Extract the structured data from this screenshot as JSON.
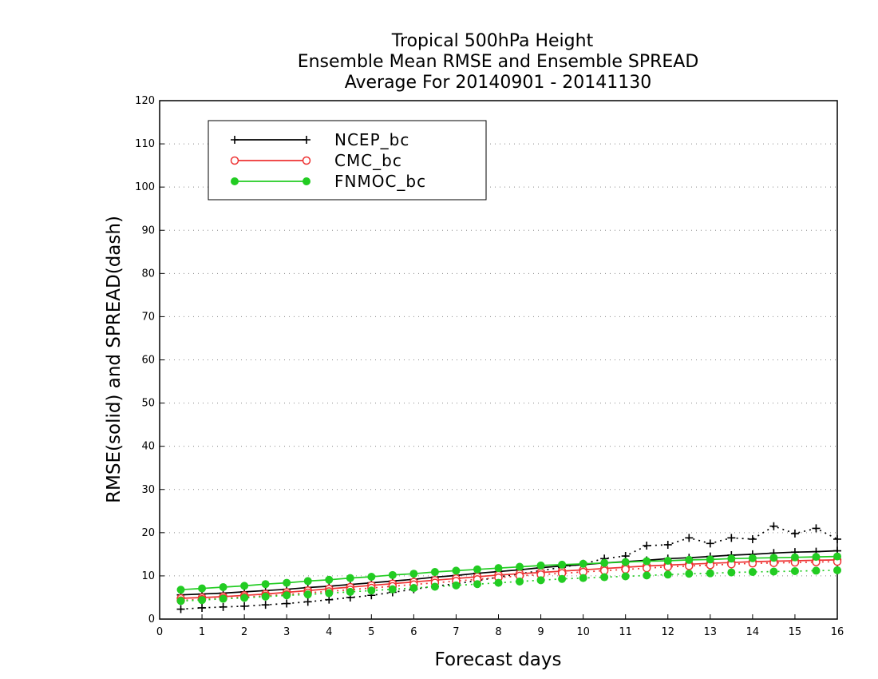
{
  "chart_data": {
    "type": "line",
    "title_lines": [
      "Tropical 500hPa Height",
      "Ensemble Mean RMSE and Ensemble SPREAD",
      "Average For 20140901 - 20141130"
    ],
    "xlabel": "Forecast days",
    "ylabel": "RMSE(solid) and SPREAD(dash)",
    "xlim": [
      0,
      16
    ],
    "ylim": [
      0,
      120
    ],
    "xticks": [
      "0",
      "1",
      "2",
      "3",
      "4",
      "5",
      "6",
      "7",
      "8",
      "9",
      "10",
      "11",
      "12",
      "13",
      "14",
      "15",
      "16"
    ],
    "yticks": [
      "0",
      "10",
      "20",
      "30",
      "40",
      "50",
      "60",
      "70",
      "80",
      "90",
      "100",
      "110",
      "120"
    ],
    "grid": "horizontal dotted",
    "legend_position": "top-left",
    "x": [
      0.5,
      1,
      1.5,
      2,
      2.5,
      3,
      3.5,
      4,
      4.5,
      5,
      5.5,
      6,
      6.5,
      7,
      7.5,
      8,
      8.5,
      9,
      9.5,
      10,
      10.5,
      11,
      11.5,
      12,
      12.5,
      13,
      13.5,
      14,
      14.5,
      15,
      15.5,
      16
    ],
    "series": [
      {
        "name": "NCEP_bc",
        "color": "#000000",
        "marker": "plus",
        "rmse": [
          5.6,
          5.8,
          6.0,
          6.3,
          6.6,
          6.9,
          7.3,
          7.6,
          8.0,
          8.4,
          8.8,
          9.2,
          9.7,
          10.1,
          10.6,
          11.0,
          11.4,
          11.9,
          12.3,
          12.6,
          13.0,
          13.3,
          13.6,
          14.0,
          14.2,
          14.5,
          14.8,
          15.0,
          15.3,
          15.5,
          15.6,
          15.8
        ],
        "spread": [
          2.3,
          2.6,
          2.8,
          3.0,
          3.3,
          3.6,
          4.0,
          4.5,
          5.0,
          5.5,
          6.2,
          6.9,
          7.6,
          8.2,
          8.9,
          9.7,
          10.5,
          11.2,
          12.0,
          12.8,
          14.0,
          14.6,
          17.0,
          17.2,
          18.8,
          17.5,
          18.8,
          18.5,
          21.5,
          19.8,
          21.0,
          18.5
        ]
      },
      {
        "name": "CMC_bc",
        "color": "#ee3333",
        "marker": "circle",
        "rmse": [
          4.8,
          5.0,
          5.2,
          5.5,
          5.8,
          6.2,
          6.6,
          7.0,
          7.4,
          7.8,
          8.2,
          8.6,
          9.0,
          9.4,
          9.8,
          10.2,
          10.5,
          10.8,
          11.1,
          11.4,
          11.7,
          12.0,
          12.3,
          12.5,
          12.7,
          12.9,
          13.1,
          13.3,
          13.4,
          13.5,
          13.6,
          13.7
        ],
        "spread": [
          4.3,
          4.6,
          4.8,
          5.1,
          5.4,
          5.7,
          6.1,
          6.4,
          6.8,
          7.2,
          7.6,
          8.0,
          8.4,
          8.8,
          9.2,
          9.6,
          10.0,
          10.3,
          10.6,
          10.9,
          11.2,
          11.5,
          11.8,
          12.1,
          12.3,
          12.5,
          12.7,
          12.9,
          13.0,
          13.1,
          13.2,
          13.3
        ]
      },
      {
        "name": "FNMOC_bc",
        "color": "#22cc22",
        "marker": "dot",
        "rmse": [
          6.8,
          7.1,
          7.4,
          7.7,
          8.1,
          8.4,
          8.8,
          9.1,
          9.5,
          9.8,
          10.2,
          10.5,
          10.9,
          11.2,
          11.5,
          11.8,
          12.1,
          12.4,
          12.6,
          12.8,
          13.0,
          13.2,
          13.4,
          13.5,
          13.7,
          13.8,
          14.0,
          14.1,
          14.2,
          14.3,
          14.4,
          14.5
        ],
        "spread": [
          4.2,
          4.4,
          4.7,
          4.9,
          5.2,
          5.5,
          5.7,
          6.0,
          6.3,
          6.6,
          6.9,
          7.2,
          7.5,
          7.8,
          8.1,
          8.4,
          8.7,
          9.0,
          9.3,
          9.5,
          9.7,
          9.9,
          10.1,
          10.3,
          10.5,
          10.6,
          10.8,
          10.9,
          11.0,
          11.1,
          11.2,
          11.3
        ]
      }
    ]
  }
}
